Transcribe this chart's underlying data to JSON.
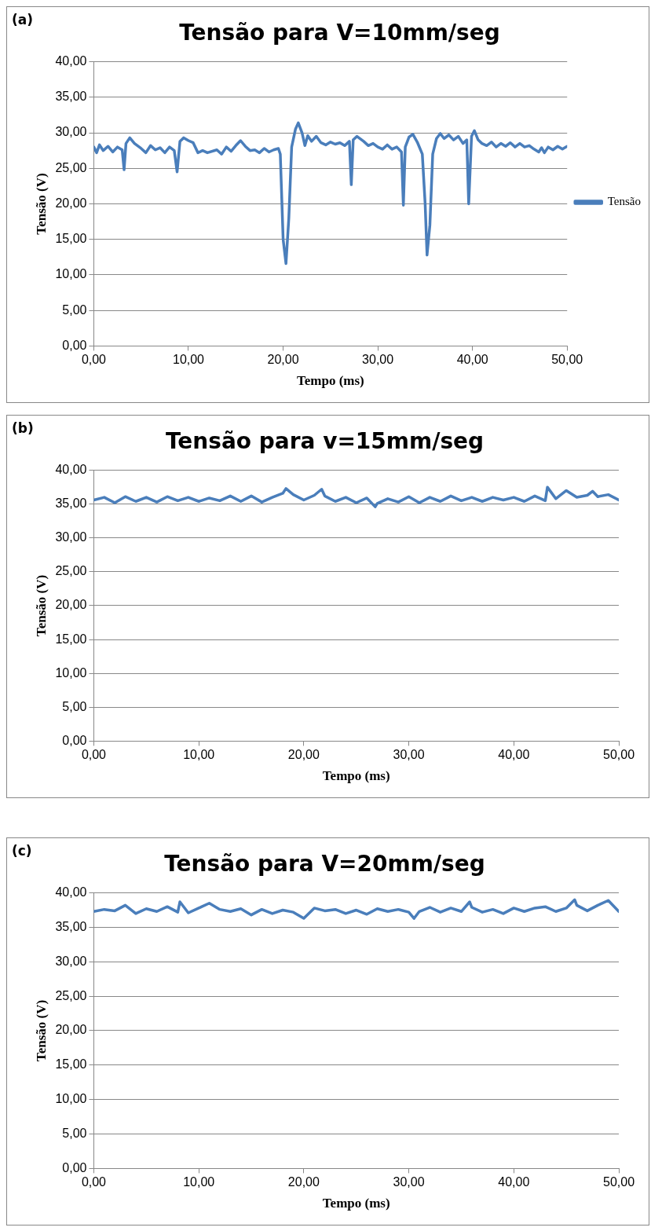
{
  "chart_data": [
    {
      "type": "line",
      "title": "Tensão para V=10mm/seg",
      "xlabel": "Tempo (ms)",
      "ylabel": "Tensão (V)",
      "annotations": [
        "(a)"
      ],
      "legend": "right",
      "grid": "y",
      "marker": "none",
      "line_style": "solid",
      "xlim": [
        0,
        50
      ],
      "xticks": [
        {
          "value": 0,
          "label": "0,00"
        },
        {
          "value": 10,
          "label": "10,00"
        },
        {
          "value": 20,
          "label": "20,00"
        },
        {
          "value": 30,
          "label": "30,00"
        },
        {
          "value": 40,
          "label": "40,00"
        },
        {
          "value": 50,
          "label": "50,00"
        }
      ],
      "ylim": [
        0,
        40
      ],
      "yticks": [
        {
          "value": 0,
          "label": "0,00"
        },
        {
          "value": 5,
          "label": "5,00"
        },
        {
          "value": 10,
          "label": "10,00"
        },
        {
          "value": 15,
          "label": "15,00"
        },
        {
          "value": 20,
          "label": "20,00"
        },
        {
          "value": 25,
          "label": "25,00"
        },
        {
          "value": 30,
          "label": "30,00"
        },
        {
          "value": 35,
          "label": "35,00"
        },
        {
          "value": 40,
          "label": "40,00"
        }
      ],
      "x": [
        0,
        0.3,
        0.6,
        1,
        1.5,
        2,
        2.5,
        3,
        3.2,
        3.4,
        3.8,
        4.3,
        5,
        5.5,
        6,
        6.5,
        7,
        7.5,
        8,
        8.5,
        8.8,
        9.1,
        9.5,
        10,
        10.5,
        11,
        11.5,
        12,
        13,
        13.5,
        14,
        14.5,
        15,
        15.5,
        16,
        16.5,
        17,
        17.5,
        18,
        18.5,
        19,
        19.5,
        19.7,
        20,
        20.3,
        20.6,
        20.9,
        21.3,
        21.6,
        22,
        22.3,
        22.6,
        23,
        23.5,
        24,
        24.5,
        25,
        25.5,
        26,
        26.5,
        27,
        27.2,
        27.4,
        27.8,
        28.5,
        29,
        29.5,
        30,
        30.5,
        31,
        31.5,
        32,
        32.5,
        32.7,
        32.9,
        33.3,
        33.7,
        34.2,
        34.7,
        35,
        35.2,
        35.5,
        35.8,
        36.2,
        36.6,
        37,
        37.5,
        38,
        38.5,
        39,
        39.4,
        39.6,
        39.9,
        40.2,
        40.6,
        41,
        41.5,
        42,
        42.5,
        43,
        43.5,
        44,
        44.5,
        45,
        45.5,
        46,
        46.5,
        47,
        47.3,
        47.6,
        48,
        48.5,
        49,
        49.5,
        50
      ],
      "series": [
        {
          "name": "Tensão",
          "color": "#4a7ebb",
          "values": [
            28.0,
            27.2,
            28.3,
            27.5,
            28.1,
            27.3,
            28.0,
            27.6,
            24.8,
            28.5,
            29.3,
            28.5,
            27.8,
            27.2,
            28.2,
            27.6,
            27.9,
            27.2,
            28.0,
            27.5,
            24.5,
            28.8,
            29.3,
            28.9,
            28.6,
            27.2,
            27.5,
            27.2,
            27.6,
            27.0,
            28.0,
            27.4,
            28.2,
            28.9,
            28.1,
            27.5,
            27.6,
            27.2,
            27.8,
            27.3,
            27.6,
            27.8,
            27.0,
            15.0,
            11.6,
            18.0,
            28.0,
            30.5,
            31.4,
            30.0,
            28.2,
            29.6,
            28.8,
            29.5,
            28.6,
            28.3,
            28.7,
            28.4,
            28.6,
            28.2,
            28.8,
            22.7,
            29.0,
            29.5,
            28.8,
            28.2,
            28.5,
            28.0,
            27.7,
            28.3,
            27.7,
            28.0,
            27.3,
            19.8,
            28.0,
            29.4,
            29.8,
            28.6,
            27.0,
            20.0,
            12.8,
            17.0,
            27.0,
            29.2,
            29.9,
            29.2,
            29.7,
            29.0,
            29.5,
            28.5,
            29.0,
            20.0,
            29.5,
            30.3,
            29.0,
            28.5,
            28.2,
            28.7,
            28.0,
            28.5,
            28.1,
            28.6,
            28.0,
            28.5,
            28.0,
            28.2,
            27.7,
            27.3,
            27.9,
            27.2,
            28.0,
            27.6,
            28.1,
            27.7,
            28.1
          ]
        }
      ]
    },
    {
      "type": "line",
      "title": "Tensão para v=15mm/seg",
      "xlabel": "Tempo (ms)",
      "ylabel": "Tensão (V)",
      "annotations": [
        "(b)"
      ],
      "grid": "y",
      "marker": "none",
      "line_style": "solid",
      "xlim": [
        0,
        50
      ],
      "xticks": [
        {
          "value": 0,
          "label": "0,00"
        },
        {
          "value": 10,
          "label": "10,00"
        },
        {
          "value": 20,
          "label": "20,00"
        },
        {
          "value": 30,
          "label": "30,00"
        },
        {
          "value": 40,
          "label": "40,00"
        },
        {
          "value": 50,
          "label": "50,00"
        }
      ],
      "ylim": [
        0,
        40
      ],
      "yticks": [
        {
          "value": 0,
          "label": "0,00"
        },
        {
          "value": 5,
          "label": "5,00"
        },
        {
          "value": 10,
          "label": "10,00"
        },
        {
          "value": 15,
          "label": "15,00"
        },
        {
          "value": 20,
          "label": "20,00"
        },
        {
          "value": 25,
          "label": "25,00"
        },
        {
          "value": 30,
          "label": "30,00"
        },
        {
          "value": 35,
          "label": "35,00"
        },
        {
          "value": 40,
          "label": "40,00"
        }
      ],
      "x": [
        0,
        1,
        2,
        3,
        4,
        5,
        6,
        7,
        8,
        9,
        10,
        11,
        12,
        13,
        14,
        15,
        16,
        17,
        18,
        18.3,
        19,
        20,
        21,
        21.7,
        22,
        23,
        24,
        25,
        26,
        26.8,
        27,
        28,
        29,
        30,
        31,
        32,
        33,
        34,
        35,
        36,
        37,
        38,
        39,
        40,
        41,
        42,
        43,
        43.2,
        44,
        45,
        46,
        47,
        47.5,
        48,
        49,
        50
      ],
      "series": [
        {
          "color": "#4a7ebb",
          "values": [
            35.6,
            36.0,
            35.2,
            36.1,
            35.4,
            36.0,
            35.3,
            36.1,
            35.5,
            36.0,
            35.4,
            35.9,
            35.5,
            36.2,
            35.4,
            36.2,
            35.3,
            36.0,
            36.6,
            37.3,
            36.4,
            35.6,
            36.3,
            37.2,
            36.2,
            35.4,
            36.0,
            35.2,
            35.9,
            34.6,
            35.1,
            35.8,
            35.3,
            36.1,
            35.2,
            36.0,
            35.4,
            36.2,
            35.5,
            36.0,
            35.4,
            36.0,
            35.6,
            36.0,
            35.4,
            36.2,
            35.5,
            37.5,
            35.8,
            37.0,
            36.0,
            36.3,
            36.9,
            36.1,
            36.4,
            35.6
          ]
        }
      ]
    },
    {
      "type": "line",
      "title": "Tensão para V=20mm/seg",
      "xlabel": "Tempo (ms)",
      "ylabel": "Tensão (V)",
      "annotations": [
        "(c)"
      ],
      "grid": "y",
      "marker": "none",
      "line_style": "solid",
      "xlim": [
        0,
        50
      ],
      "xticks": [
        {
          "value": 0,
          "label": "0,00"
        },
        {
          "value": 10,
          "label": "10,00"
        },
        {
          "value": 20,
          "label": "20,00"
        },
        {
          "value": 30,
          "label": "30,00"
        },
        {
          "value": 40,
          "label": "40,00"
        },
        {
          "value": 50,
          "label": "50,00"
        }
      ],
      "ylim": [
        0,
        40
      ],
      "yticks": [
        {
          "value": 0,
          "label": "0,00"
        },
        {
          "value": 5,
          "label": "5,00"
        },
        {
          "value": 10,
          "label": "10,00"
        },
        {
          "value": 15,
          "label": "15,00"
        },
        {
          "value": 20,
          "label": "20,00"
        },
        {
          "value": 25,
          "label": "25,00"
        },
        {
          "value": 30,
          "label": "30,00"
        },
        {
          "value": 35,
          "label": "35,00"
        },
        {
          "value": 40,
          "label": "40,00"
        }
      ],
      "x": [
        0,
        1,
        2,
        3,
        4,
        5,
        6,
        7,
        8,
        8.2,
        9,
        10,
        11,
        12,
        13,
        14,
        15,
        16,
        17,
        18,
        19,
        20,
        21,
        22,
        23,
        24,
        25,
        26,
        27,
        28,
        29,
        30,
        30.5,
        31,
        32,
        33,
        34,
        35,
        35.8,
        36,
        37,
        38,
        39,
        40,
        41,
        42,
        43,
        44,
        45,
        45.8,
        46,
        47,
        48,
        49,
        50
      ],
      "series": [
        {
          "color": "#4a7ebb",
          "values": [
            37.3,
            37.6,
            37.4,
            38.2,
            37.0,
            37.7,
            37.3,
            38.0,
            37.2,
            38.7,
            37.1,
            37.8,
            38.5,
            37.6,
            37.3,
            37.7,
            36.8,
            37.6,
            37.0,
            37.5,
            37.2,
            36.3,
            37.8,
            37.4,
            37.6,
            37.0,
            37.5,
            36.9,
            37.7,
            37.3,
            37.6,
            37.2,
            36.3,
            37.3,
            37.9,
            37.2,
            37.8,
            37.3,
            38.7,
            37.9,
            37.2,
            37.6,
            37.0,
            37.8,
            37.3,
            37.8,
            38.0,
            37.3,
            37.8,
            39.0,
            38.2,
            37.4,
            38.2,
            38.9,
            37.3
          ]
        }
      ]
    }
  ]
}
